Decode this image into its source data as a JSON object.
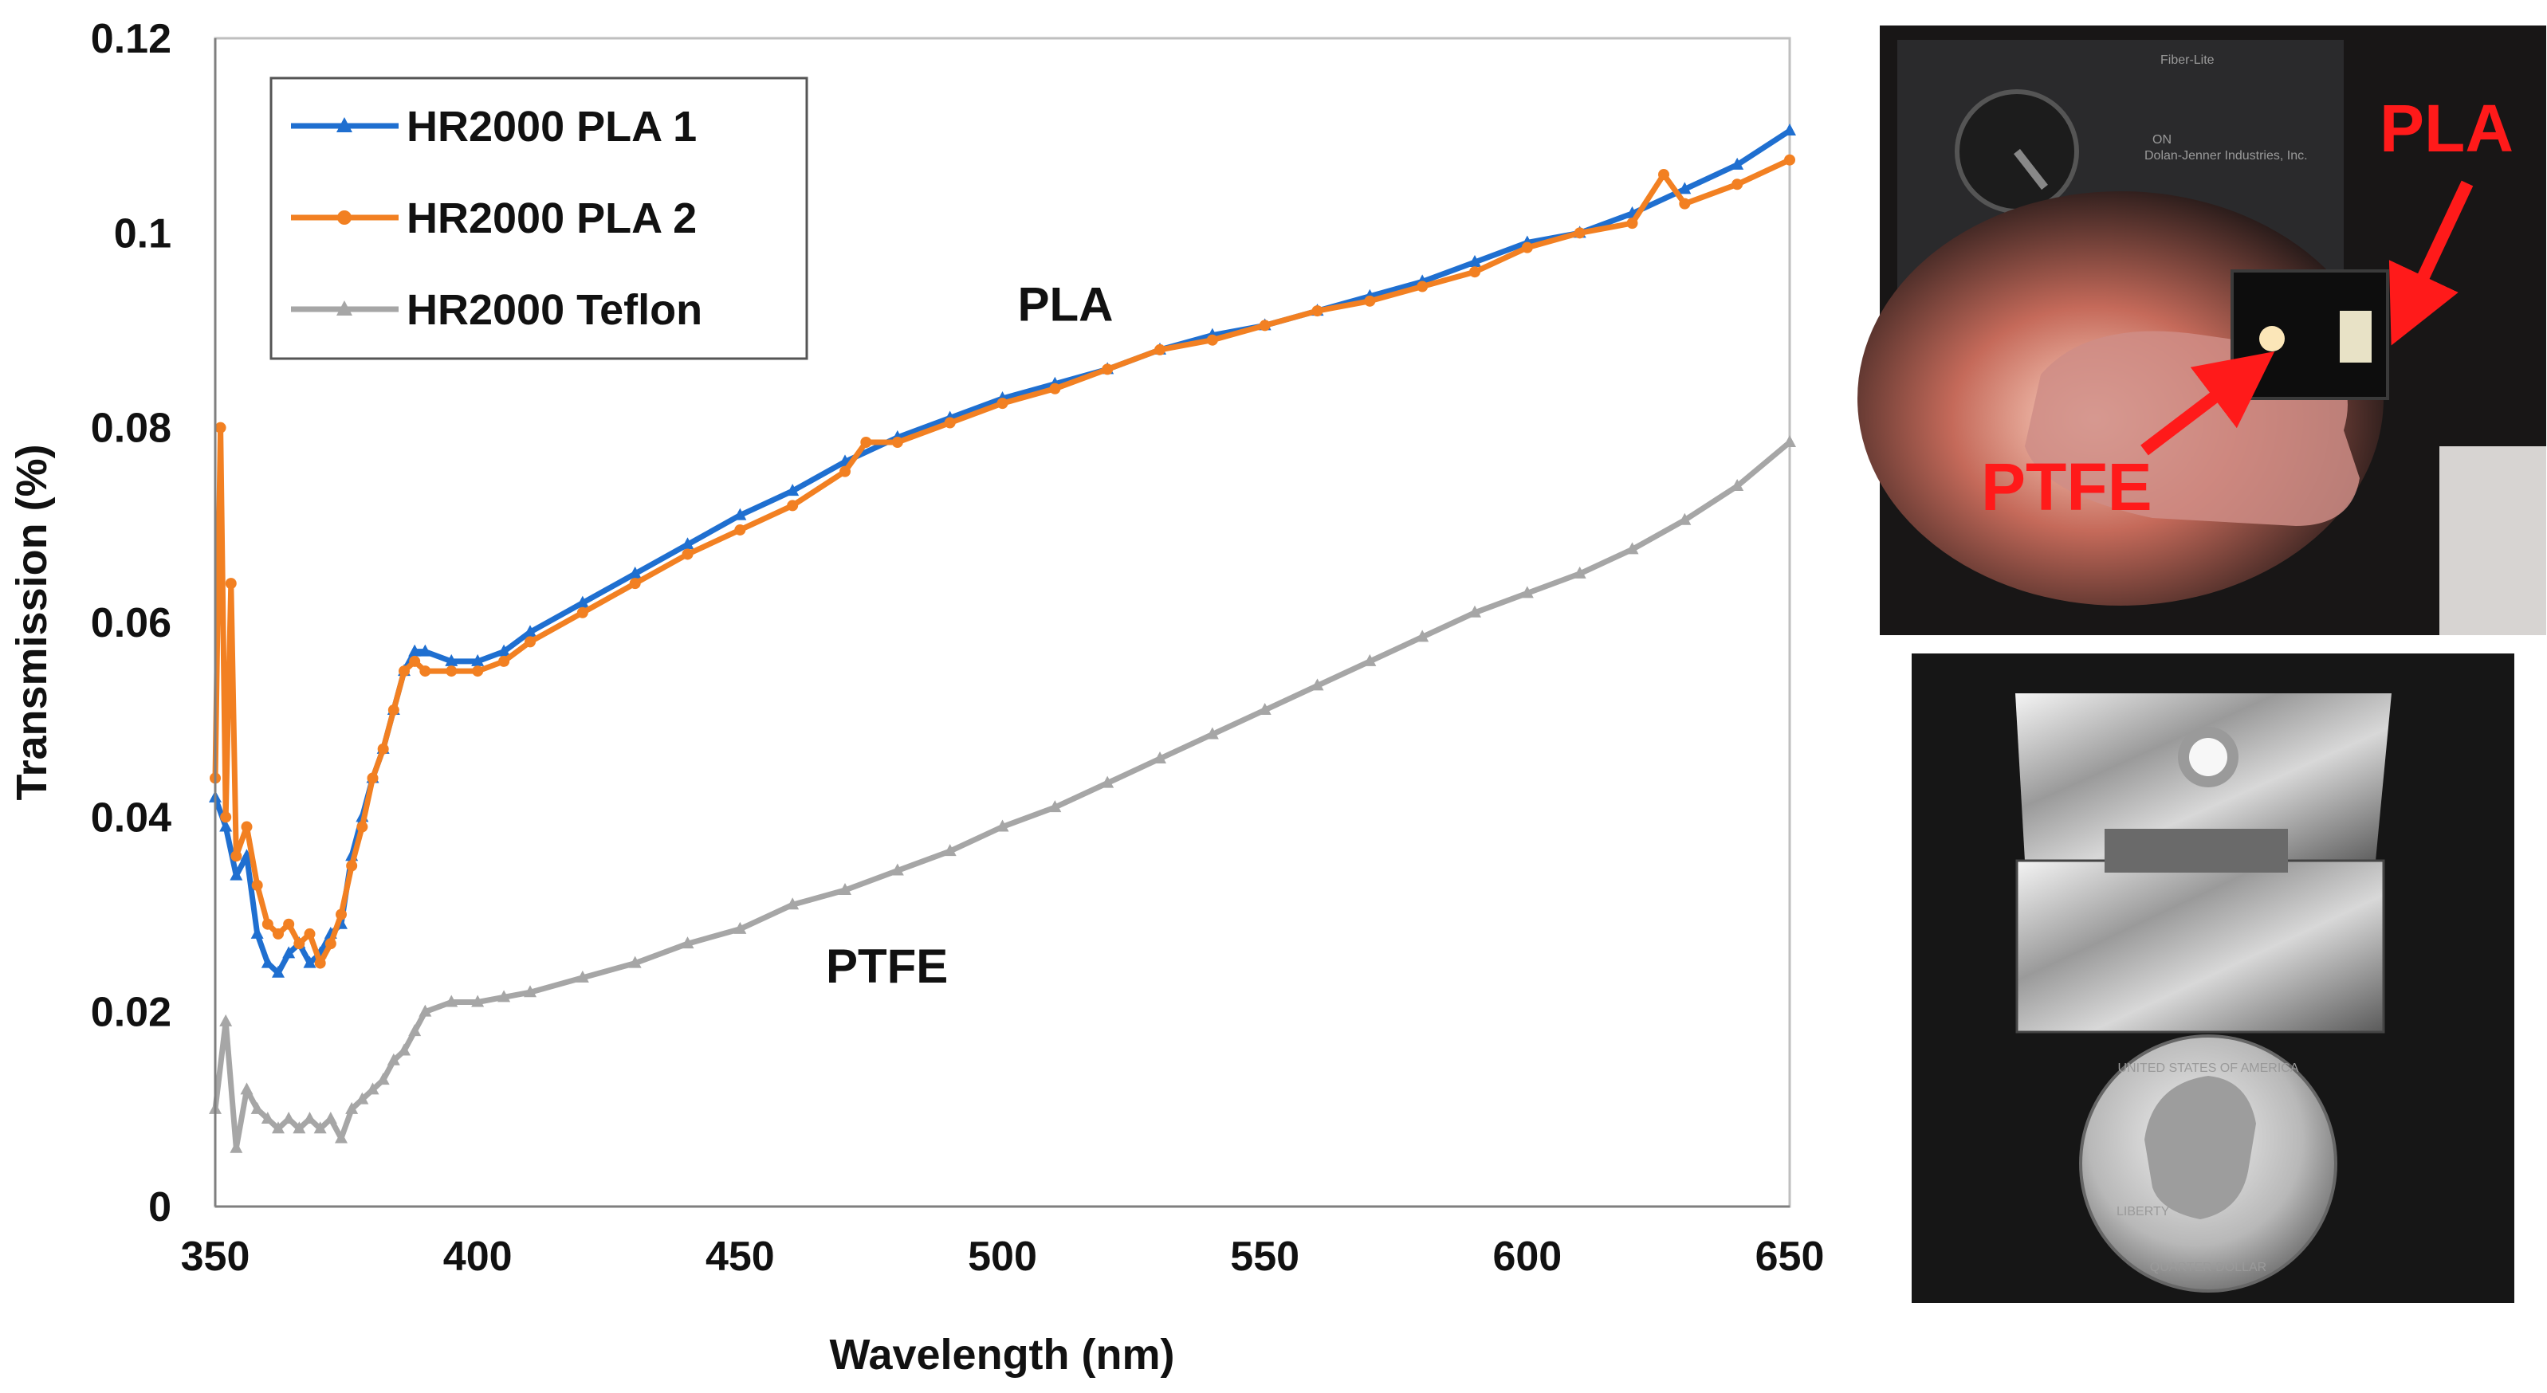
{
  "chart_data": {
    "type": "line",
    "title": "",
    "xlabel": "Wavelength (nm)",
    "ylabel": "Transmission (%)",
    "xlim": [
      350,
      650
    ],
    "ylim": [
      0,
      0.12
    ],
    "xticks": [
      350,
      400,
      450,
      500,
      550,
      600,
      650
    ],
    "xtick_labels": [
      "350",
      "400",
      "450",
      "500",
      "550",
      "600",
      "650"
    ],
    "yticks": [
      0,
      0.02,
      0.04,
      0.06,
      0.08,
      0.1,
      0.12
    ],
    "ytick_labels": [
      "0",
      "0.02",
      "0.04",
      "0.06",
      "0.08",
      "0.1",
      "0.12"
    ],
    "grid": false,
    "legend_position": "top-left",
    "series": [
      {
        "name": "HR2000 PLA 1",
        "color": "#1f6fd0",
        "marker": "triangle",
        "x": [
          350,
          352,
          354,
          356,
          358,
          360,
          362,
          364,
          366,
          368,
          370,
          372,
          374,
          376,
          378,
          380,
          382,
          384,
          386,
          388,
          390,
          395,
          400,
          405,
          410,
          420,
          430,
          440,
          450,
          460,
          470,
          480,
          490,
          500,
          510,
          520,
          530,
          540,
          550,
          560,
          570,
          580,
          590,
          600,
          610,
          620,
          630,
          640,
          650
        ],
        "y": [
          0.042,
          0.039,
          0.034,
          0.036,
          0.028,
          0.025,
          0.024,
          0.026,
          0.027,
          0.025,
          0.026,
          0.028,
          0.029,
          0.036,
          0.04,
          0.044,
          0.047,
          0.051,
          0.055,
          0.057,
          0.057,
          0.056,
          0.056,
          0.057,
          0.059,
          0.062,
          0.065,
          0.068,
          0.071,
          0.0735,
          0.0765,
          0.079,
          0.081,
          0.083,
          0.0845,
          0.086,
          0.088,
          0.0895,
          0.0905,
          0.092,
          0.0935,
          0.095,
          0.097,
          0.099,
          0.1,
          0.102,
          0.1045,
          0.107,
          0.1105
        ]
      },
      {
        "name": "HR2000 PLA 2",
        "color": "#f28022",
        "marker": "circle",
        "x": [
          350,
          351,
          352,
          353,
          354,
          356,
          358,
          360,
          362,
          364,
          366,
          368,
          370,
          372,
          374,
          376,
          378,
          380,
          382,
          384,
          386,
          388,
          390,
          395,
          400,
          405,
          410,
          420,
          430,
          440,
          450,
          460,
          470,
          474,
          480,
          490,
          500,
          510,
          520,
          530,
          540,
          550,
          560,
          570,
          580,
          590,
          600,
          610,
          620,
          626,
          630,
          640,
          650
        ],
        "y": [
          0.044,
          0.08,
          0.04,
          0.064,
          0.036,
          0.039,
          0.033,
          0.029,
          0.028,
          0.029,
          0.027,
          0.028,
          0.025,
          0.027,
          0.03,
          0.035,
          0.039,
          0.044,
          0.047,
          0.051,
          0.055,
          0.056,
          0.055,
          0.055,
          0.055,
          0.056,
          0.058,
          0.061,
          0.064,
          0.067,
          0.0695,
          0.072,
          0.0755,
          0.0785,
          0.0785,
          0.0805,
          0.0825,
          0.084,
          0.086,
          0.088,
          0.089,
          0.0905,
          0.092,
          0.093,
          0.0945,
          0.096,
          0.0985,
          0.1,
          0.101,
          0.106,
          0.103,
          0.105,
          0.1075
        ]
      },
      {
        "name": "HR2000 Teflon",
        "color": "#a6a6a6",
        "marker": "triangle",
        "x": [
          350,
          352,
          354,
          356,
          358,
          360,
          362,
          364,
          366,
          368,
          370,
          372,
          374,
          376,
          378,
          380,
          382,
          384,
          386,
          388,
          390,
          395,
          400,
          405,
          410,
          420,
          430,
          440,
          450,
          460,
          470,
          480,
          490,
          500,
          510,
          520,
          530,
          540,
          550,
          560,
          570,
          580,
          590,
          600,
          610,
          620,
          630,
          640,
          650
        ],
        "y": [
          0.01,
          0.019,
          0.006,
          0.012,
          0.01,
          0.009,
          0.008,
          0.009,
          0.008,
          0.009,
          0.008,
          0.009,
          0.007,
          0.01,
          0.011,
          0.012,
          0.013,
          0.015,
          0.016,
          0.018,
          0.02,
          0.021,
          0.021,
          0.0215,
          0.022,
          0.0235,
          0.025,
          0.027,
          0.0285,
          0.031,
          0.0325,
          0.0345,
          0.0365,
          0.039,
          0.041,
          0.0435,
          0.046,
          0.0485,
          0.051,
          0.0535,
          0.056,
          0.0585,
          0.061,
          0.063,
          0.065,
          0.0675,
          0.0705,
          0.074,
          0.0785
        ]
      }
    ],
    "annotations": [
      {
        "text": "PLA",
        "x": 512,
        "y": 0.091
      },
      {
        "text": "PTFE",
        "x": 478,
        "y": 0.023
      }
    ]
  },
  "photo_top": {
    "label_pla": "PLA",
    "label_ptfe": "PTFE",
    "arrow_color": "#ff1a1a",
    "device_brand": "Fiber-Lite",
    "device_maker": "Dolan-Jenner Industries, Inc.",
    "switch_label": "ON"
  },
  "photo_bottom": {
    "coin_text_top": "UNITED STATES OF AMERICA",
    "coin_text_bottom": "QUARTER DOLLAR",
    "coin_text_left": "LIBERTY"
  }
}
